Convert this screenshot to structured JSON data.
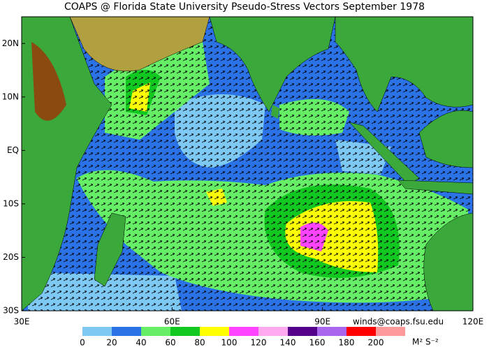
{
  "map": {
    "title": "COAPS @ Florida State University Pseudo-Stress Vectors  September 1978",
    "lon_range": [
      30,
      120
    ],
    "lat_range": [
      -30,
      25
    ],
    "lon_ticks": [
      {
        "value": 30,
        "label": "30E"
      },
      {
        "value": 60,
        "label": "60E"
      },
      {
        "value": 90,
        "label": "90E"
      },
      {
        "value": 120,
        "label": "120E"
      }
    ],
    "lat_ticks": [
      {
        "value": 20,
        "label": "20N"
      },
      {
        "value": 10,
        "label": "10N"
      },
      {
        "value": 0,
        "label": "EQ"
      },
      {
        "value": -10,
        "label": "10S"
      },
      {
        "value": -20,
        "label": "20S"
      },
      {
        "value": -30,
        "label": "30S"
      }
    ],
    "credit": "winds@coaps.fsu.edu",
    "colorbar": {
      "ticks": [
        0,
        20,
        40,
        60,
        80,
        100,
        120,
        140,
        160,
        180,
        200
      ],
      "colors": [
        "#7ec8f4",
        "#2a72e6",
        "#66ee66",
        "#10c820",
        "#ffff00",
        "#ff44ff",
        "#ffaaee",
        "#55008a",
        "#aa66ee",
        "#ff0000",
        "#ff9a9a"
      ],
      "units": "M² S⁻²"
    }
  }
}
